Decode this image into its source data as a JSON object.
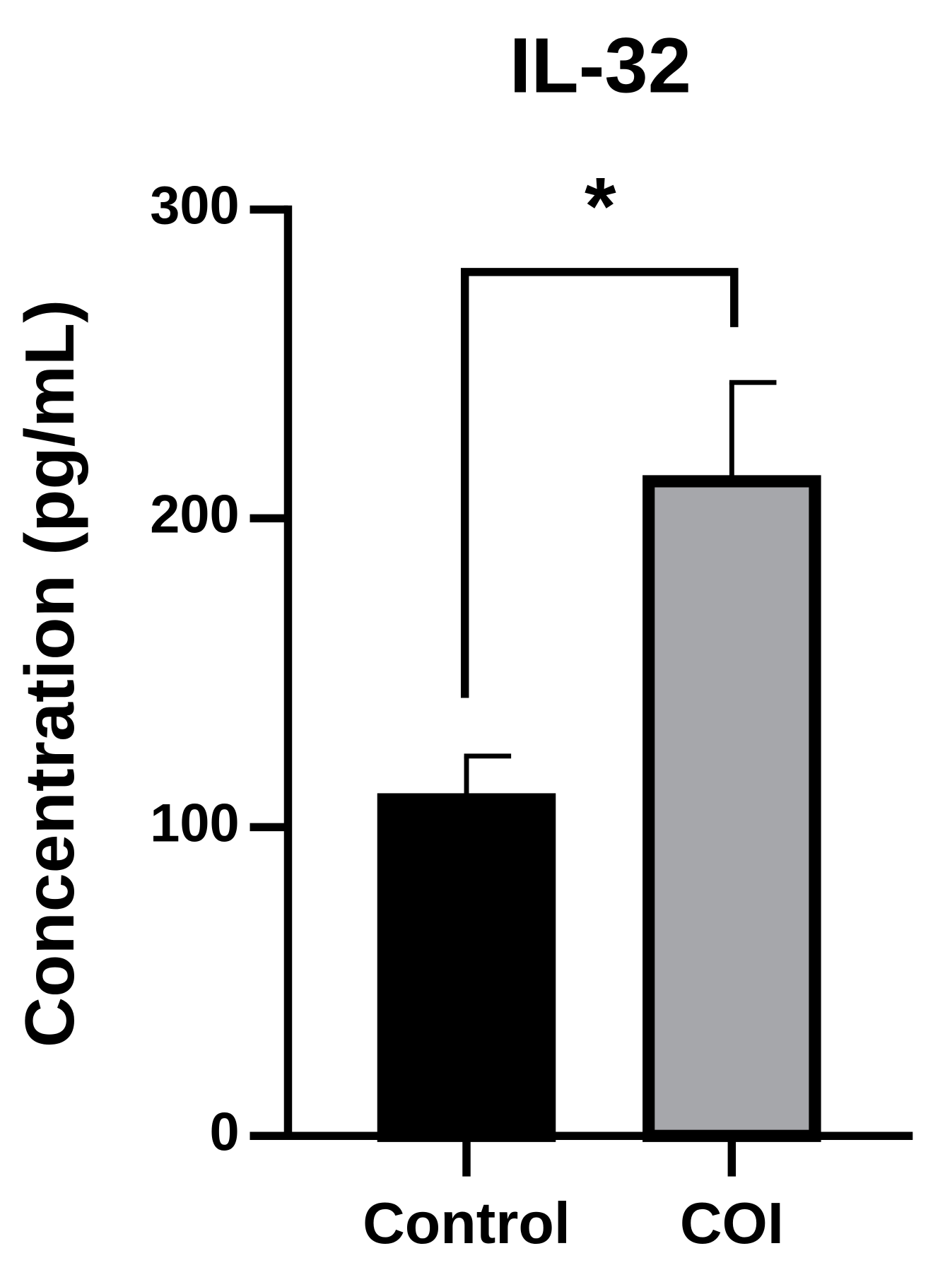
{
  "chart_data": {
    "type": "bar",
    "title": "IL-32",
    "ylabel": "Concentration (pg/mL)",
    "categories": [
      "Control",
      "COI"
    ],
    "values": [
      109,
      212
    ],
    "errors": [
      14,
      32
    ],
    "colors": [
      "#000000",
      "#a6a7ab"
    ],
    "ylim": [
      0,
      300
    ],
    "yticks": [
      0,
      100,
      200,
      300
    ],
    "annotation": "*"
  }
}
